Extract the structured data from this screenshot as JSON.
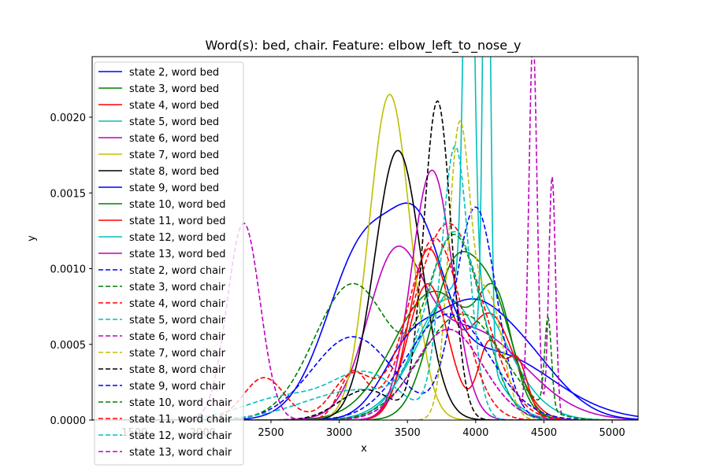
{
  "chart_data": {
    "type": "line",
    "title": "Word(s): bed, chair. Feature: elbow_left_to_nose_y",
    "xlabel": "x",
    "ylabel": "y",
    "xlim": [
      1190,
      5190
    ],
    "ylim": [
      0,
      0.0024
    ],
    "xticks": [
      1500,
      2000,
      2500,
      3000,
      3500,
      4000,
      4500,
      5000
    ],
    "yticks": [
      0.0,
      0.0005,
      0.001,
      0.0015,
      0.002
    ],
    "ytick_labels": [
      "0.0000",
      "0.0005",
      "0.0010",
      "0.0015",
      "0.0020"
    ],
    "legend_position": "upper-left",
    "grid": false,
    "series": [
      {
        "name": "state 2, word bed",
        "color": "#0000ff",
        "dash": false,
        "components": [
          [
            3200,
            280,
            0.00115
          ],
          [
            3600,
            180,
            0.0007
          ],
          [
            4100,
            450,
            0.00045
          ]
        ]
      },
      {
        "name": "state 3, word bed",
        "color": "#008000",
        "dash": false,
        "components": [
          [
            3700,
            300,
            0.00085
          ],
          [
            4150,
            120,
            0.0006
          ]
        ]
      },
      {
        "name": "state 4, word bed",
        "color": "#ff0000",
        "dash": false,
        "components": [
          [
            3650,
            140,
            0.0011
          ],
          [
            4100,
            180,
            0.0007
          ]
        ]
      },
      {
        "name": "state 5, word bed",
        "color": "#00bfbf",
        "dash": false,
        "components": [
          [
            3950,
            35,
            0.0035
          ],
          [
            3900,
            300,
            0.0009
          ]
        ]
      },
      {
        "name": "state 6, word bed",
        "color": "#bf00bf",
        "dash": false,
        "components": [
          [
            3400,
            200,
            0.0009
          ],
          [
            3950,
            400,
            0.0006
          ]
        ]
      },
      {
        "name": "state 7, word bed",
        "color": "#bfbf00",
        "dash": false,
        "components": [
          [
            3370,
            150,
            0.00215
          ]
        ]
      },
      {
        "name": "state 8, word bed",
        "color": "#000000",
        "dash": false,
        "components": [
          [
            3430,
            170,
            0.00178
          ]
        ]
      },
      {
        "name": "state 9, word bed",
        "color": "#0000ff",
        "dash": false,
        "components": [
          [
            3900,
            250,
            0.00055
          ],
          [
            4300,
            300,
            0.00045
          ],
          [
            3500,
            200,
            0.0004
          ]
        ]
      },
      {
        "name": "state 10, word bed",
        "color": "#008000",
        "dash": false,
        "components": [
          [
            3850,
            180,
            0.001
          ],
          [
            4150,
            150,
            0.0006
          ]
        ]
      },
      {
        "name": "state 11, word bed",
        "color": "#ff0000",
        "dash": false,
        "components": [
          [
            3650,
            150,
            0.0009
          ],
          [
            4100,
            80,
            0.0005
          ],
          [
            4300,
            80,
            0.0004
          ]
        ]
      },
      {
        "name": "state 12, word bed",
        "color": "#00bfbf",
        "dash": false,
        "components": [
          [
            4080,
            25,
            0.004
          ],
          [
            3800,
            250,
            0.0008
          ]
        ]
      },
      {
        "name": "state 13, word bed",
        "color": "#bf00bf",
        "dash": false,
        "components": [
          [
            3680,
            150,
            0.00165
          ]
        ]
      },
      {
        "name": "state 2, word chair",
        "color": "#0000ff",
        "dash": true,
        "components": [
          [
            3100,
            300,
            0.00055
          ],
          [
            4000,
            150,
            0.0014
          ]
        ]
      },
      {
        "name": "state 3, word chair",
        "color": "#008000",
        "dash": true,
        "components": [
          [
            3100,
            280,
            0.0009
          ],
          [
            3850,
            200,
            0.0012
          ]
        ]
      },
      {
        "name": "state 4, word chair",
        "color": "#ff0000",
        "dash": true,
        "components": [
          [
            3800,
            250,
            0.0013
          ],
          [
            3100,
            100,
            0.0003
          ]
        ]
      },
      {
        "name": "state 5, word chair",
        "color": "#00bfbf",
        "dash": true,
        "components": [
          [
            3850,
            100,
            0.0018
          ],
          [
            3200,
            250,
            0.0003
          ],
          [
            2600,
            300,
            0.00015
          ]
        ]
      },
      {
        "name": "state 6, word chair",
        "color": "#bf00bf",
        "dash": true,
        "components": [
          [
            4420,
            30,
            0.0025
          ],
          [
            4560,
            25,
            0.0016
          ],
          [
            3800,
            250,
            0.0006
          ]
        ]
      },
      {
        "name": "state 7, word chair",
        "color": "#bfbf00",
        "dash": true,
        "components": [
          [
            3880,
            80,
            0.0019
          ],
          [
            4100,
            100,
            0.0008
          ]
        ]
      },
      {
        "name": "state 8, word chair",
        "color": "#000000",
        "dash": true,
        "components": [
          [
            3720,
            100,
            0.0021
          ],
          [
            3200,
            200,
            0.0002
          ]
        ]
      },
      {
        "name": "state 9, word chair",
        "color": "#0000ff",
        "dash": true,
        "components": [
          [
            3800,
            300,
            0.0007
          ]
        ]
      },
      {
        "name": "state 10, word chair",
        "color": "#008000",
        "dash": true,
        "components": [
          [
            4530,
            25,
            0.0006
          ],
          [
            3900,
            300,
            0.0007
          ]
        ]
      },
      {
        "name": "state 11, word chair",
        "color": "#ff0000",
        "dash": true,
        "components": [
          [
            2450,
            150,
            0.00028
          ],
          [
            3700,
            200,
            0.0012
          ],
          [
            3100,
            150,
            0.0003
          ]
        ]
      },
      {
        "name": "state 12, word chair",
        "color": "#00bfbf",
        "dash": true,
        "components": [
          [
            3150,
            400,
            0.0002
          ],
          [
            3850,
            200,
            0.0012
          ]
        ]
      },
      {
        "name": "state 13, word chair",
        "color": "#bf00bf",
        "dash": true,
        "components": [
          [
            2300,
            120,
            0.0013
          ],
          [
            3800,
            250,
            0.0006
          ]
        ]
      }
    ]
  }
}
